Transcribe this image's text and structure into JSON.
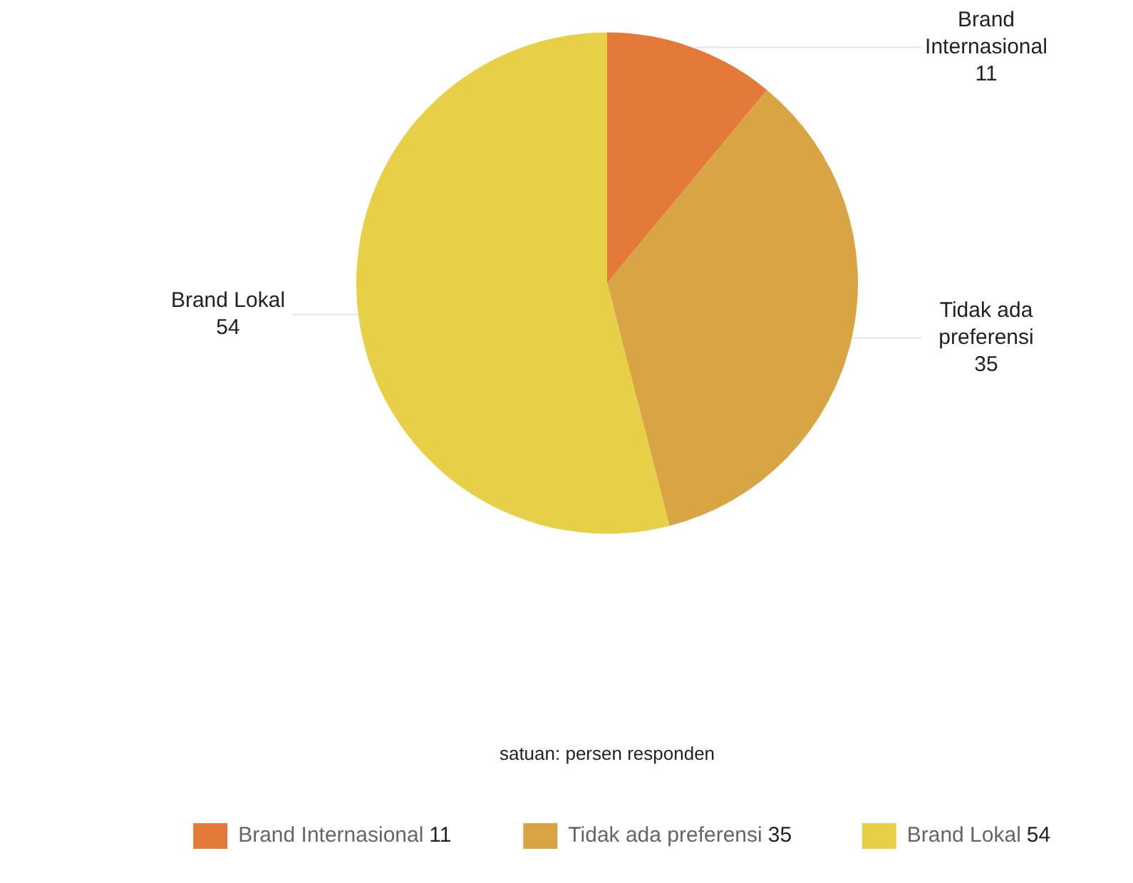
{
  "chart_data": {
    "type": "pie",
    "categories": [
      "Brand Internasional",
      "Tidak ada preferensi",
      "Brand Lokal"
    ],
    "values": [
      11,
      35,
      54
    ],
    "colors": [
      "#e47a3a",
      "#d9a444",
      "#e8cf48"
    ],
    "data_labels": true,
    "legend": "bottom",
    "annotations": [
      "satuan: persen responden",
      "11",
      "35",
      "54"
    ]
  }
}
